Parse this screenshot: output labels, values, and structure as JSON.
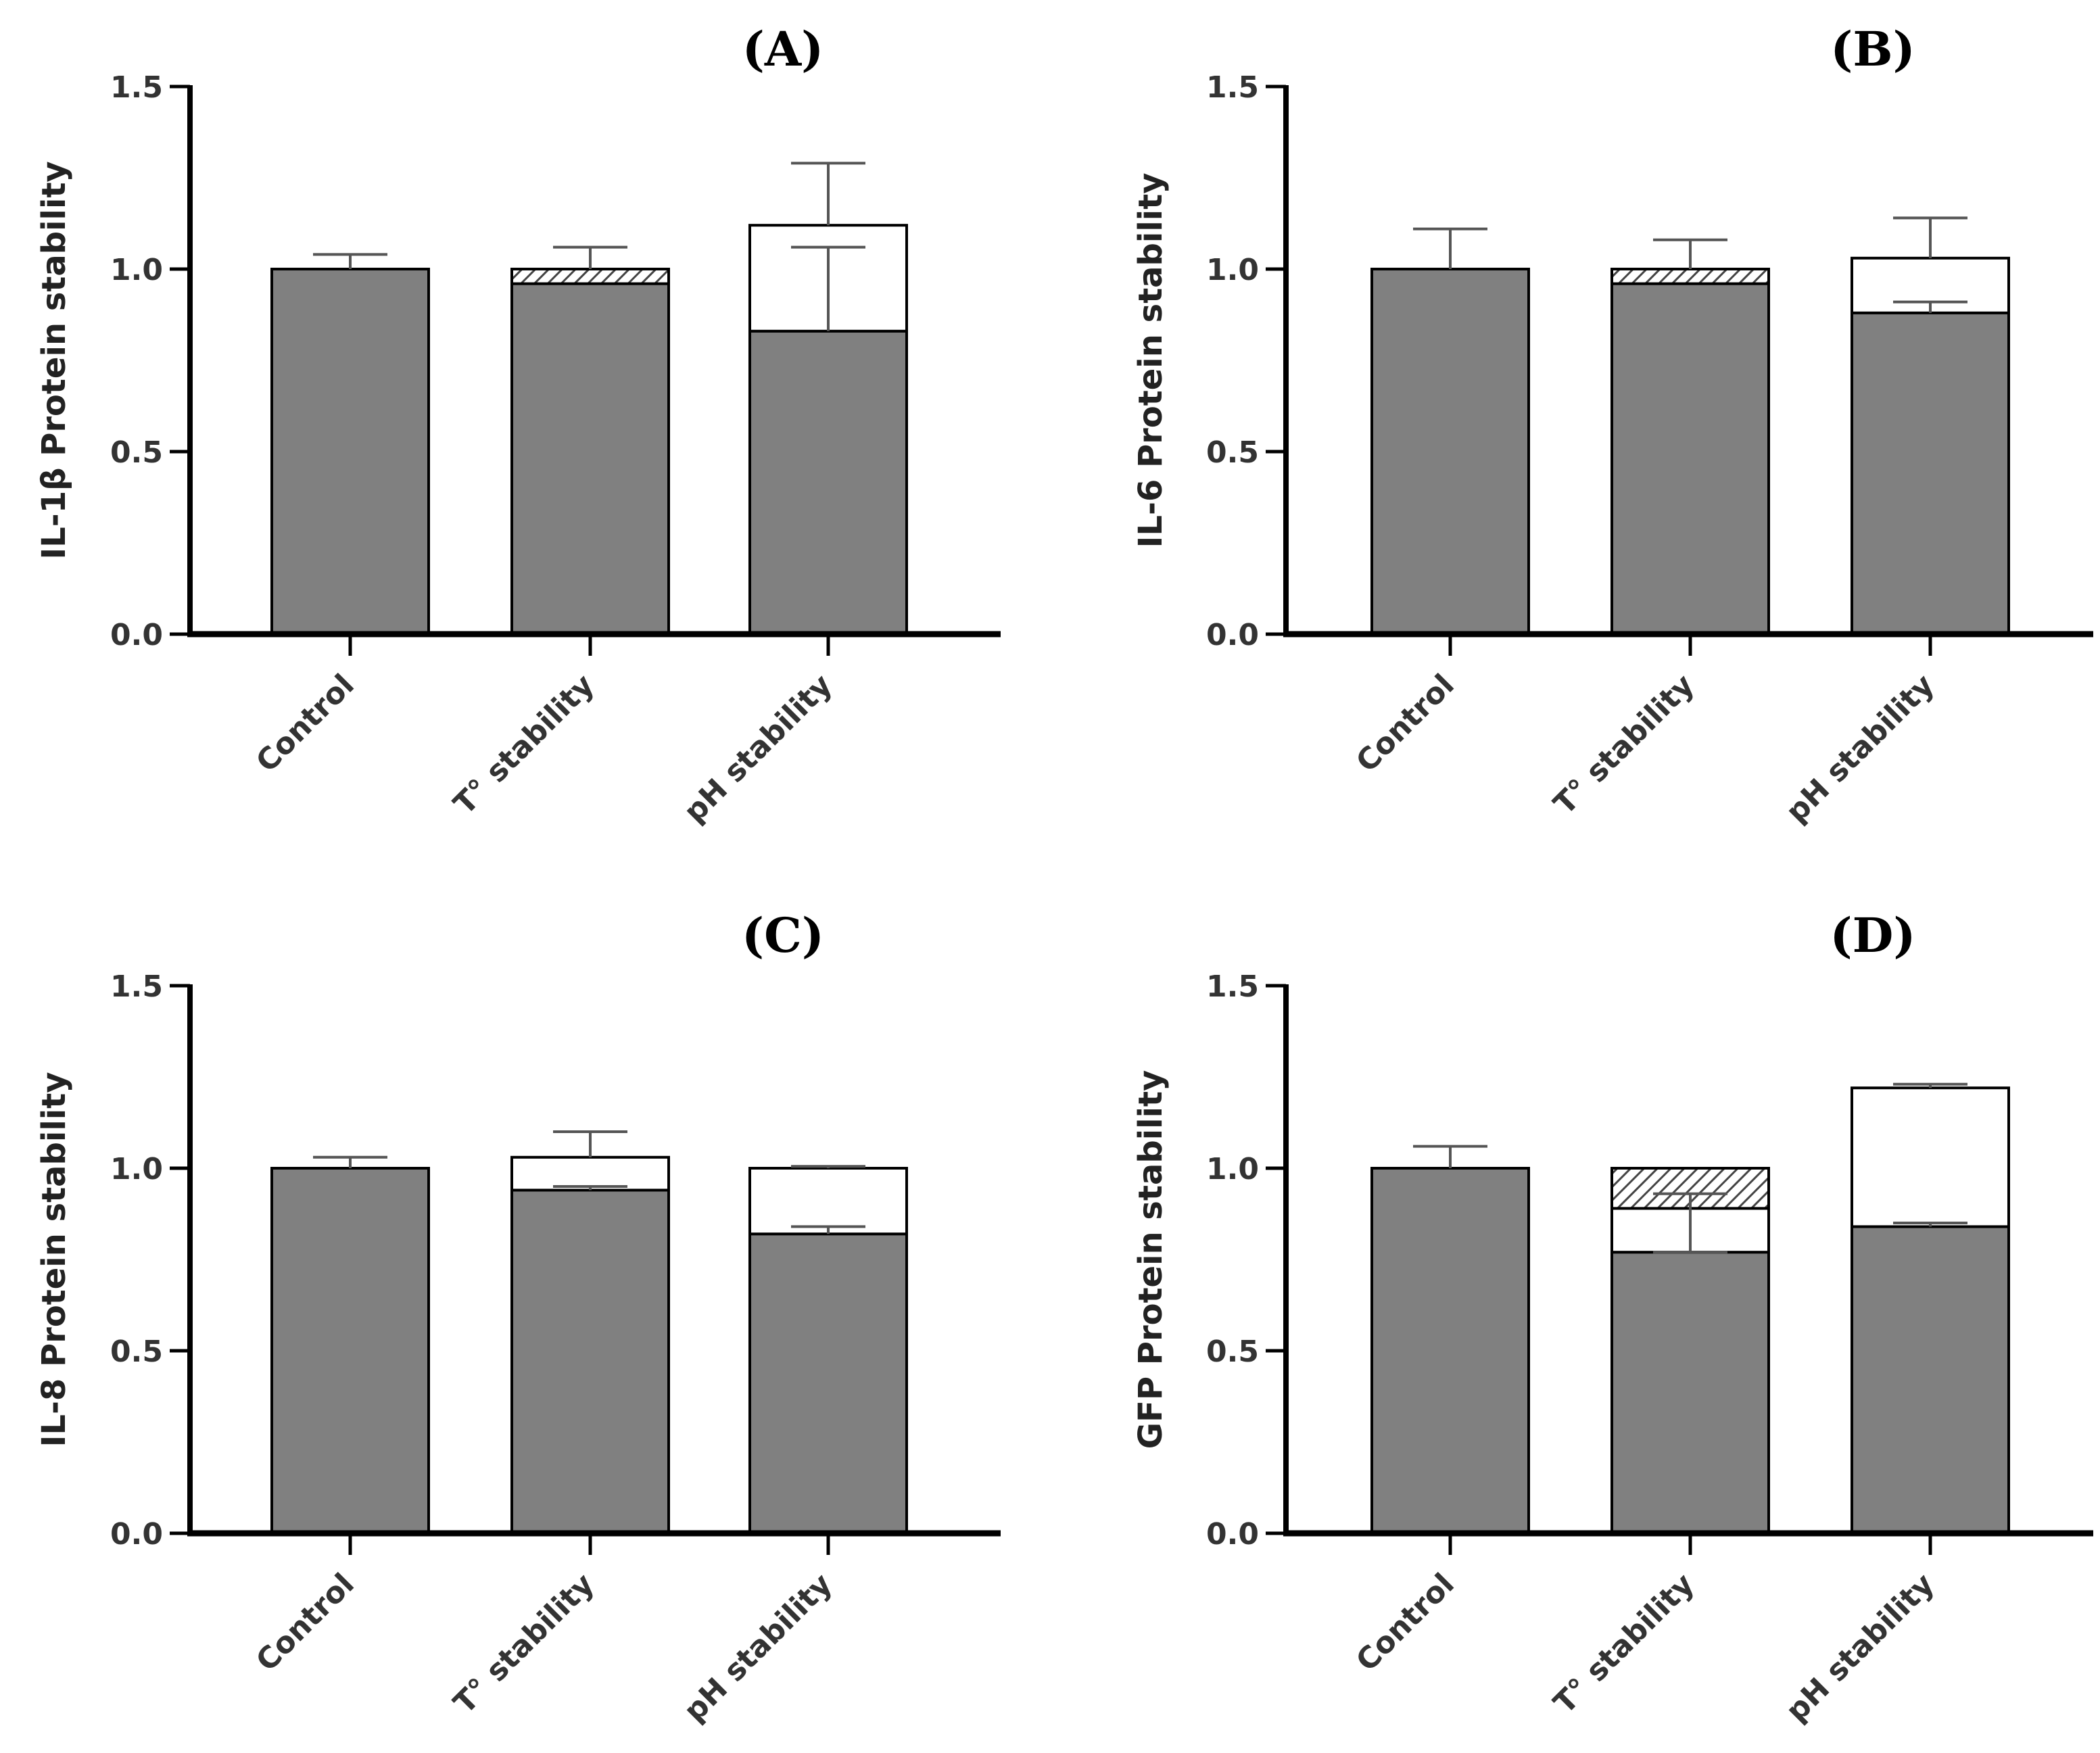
{
  "chart_data": [
    {
      "type": "bar",
      "panel": "(A)",
      "ylabel": "IL-1β Protein stability",
      "categories": [
        "Control",
        "T° stability",
        "pH stability"
      ],
      "yticks": [
        "0.0",
        "0.5",
        "1.0",
        "1.5"
      ],
      "ylim": [
        0,
        1.5
      ],
      "bars": [
        {
          "segments": [
            {
              "from": 0,
              "to": 1.0,
              "fill": "gray"
            }
          ],
          "errors": [
            {
              "at": 1.0,
              "to": 1.04
            }
          ]
        },
        {
          "segments": [
            {
              "from": 0,
              "to": 0.96,
              "fill": "gray"
            },
            {
              "from": 0.96,
              "to": 1.0,
              "fill": "hatched"
            }
          ],
          "errors": [
            {
              "at": 1.0,
              "to": 1.06
            }
          ]
        },
        {
          "segments": [
            {
              "from": 0,
              "to": 0.83,
              "fill": "gray"
            },
            {
              "from": 0.83,
              "to": 1.12,
              "fill": "white"
            }
          ],
          "errors": [
            {
              "at": 0.83,
              "to": 1.06
            },
            {
              "at": 1.12,
              "to": 1.29
            }
          ]
        }
      ]
    },
    {
      "type": "bar",
      "panel": "(B)",
      "ylabel": "IL-6 Protein stability",
      "categories": [
        "Control",
        "T° stability",
        "pH stability"
      ],
      "yticks": [
        "0.0",
        "0.5",
        "1.0",
        "1.5"
      ],
      "ylim": [
        0,
        1.5
      ],
      "bars": [
        {
          "segments": [
            {
              "from": 0,
              "to": 1.0,
              "fill": "gray"
            }
          ],
          "errors": [
            {
              "at": 1.0,
              "to": 1.11
            }
          ]
        },
        {
          "segments": [
            {
              "from": 0,
              "to": 0.96,
              "fill": "gray"
            },
            {
              "from": 0.96,
              "to": 1.0,
              "fill": "hatched"
            }
          ],
          "errors": [
            {
              "at": 1.0,
              "to": 1.08
            }
          ]
        },
        {
          "segments": [
            {
              "from": 0,
              "to": 0.88,
              "fill": "gray"
            },
            {
              "from": 0.88,
              "to": 1.03,
              "fill": "white"
            }
          ],
          "errors": [
            {
              "at": 0.88,
              "to": 0.91
            },
            {
              "at": 1.03,
              "to": 1.14
            }
          ]
        }
      ]
    },
    {
      "type": "bar",
      "panel": "(C)",
      "ylabel": "IL-8 Protein stability",
      "categories": [
        "Control",
        "T° stability",
        "pH stability"
      ],
      "yticks": [
        "0.0",
        "0.5",
        "1.0",
        "1.5"
      ],
      "ylim": [
        0,
        1.5
      ],
      "bars": [
        {
          "segments": [
            {
              "from": 0,
              "to": 1.0,
              "fill": "gray"
            }
          ],
          "errors": [
            {
              "at": 1.0,
              "to": 1.03
            }
          ]
        },
        {
          "segments": [
            {
              "from": 0,
              "to": 0.94,
              "fill": "gray"
            },
            {
              "from": 0.94,
              "to": 1.03,
              "fill": "white"
            }
          ],
          "errors": [
            {
              "at": 0.94,
              "to": 0.95
            },
            {
              "at": 1.03,
              "to": 1.1
            }
          ]
        },
        {
          "segments": [
            {
              "from": 0,
              "to": 0.82,
              "fill": "gray"
            },
            {
              "from": 0.82,
              "to": 1.0,
              "fill": "white"
            }
          ],
          "errors": [
            {
              "at": 0.82,
              "to": 0.84
            },
            {
              "at": 1.0,
              "to": 1.005
            }
          ]
        }
      ]
    },
    {
      "type": "bar",
      "panel": "(D)",
      "ylabel": "GFP Protein stability",
      "categories": [
        "Control",
        "T° stability",
        "pH stability"
      ],
      "yticks": [
        "0.0",
        "0.5",
        "1.0",
        "1.5"
      ],
      "ylim": [
        0,
        1.5
      ],
      "bars": [
        {
          "segments": [
            {
              "from": 0,
              "to": 1.0,
              "fill": "gray"
            }
          ],
          "errors": [
            {
              "at": 1.0,
              "to": 1.06
            }
          ]
        },
        {
          "segments": [
            {
              "from": 0,
              "to": 0.77,
              "fill": "gray"
            },
            {
              "from": 0.77,
              "to": 0.89,
              "fill": "white"
            },
            {
              "from": 0.89,
              "to": 1.0,
              "fill": "hatched"
            }
          ],
          "errors": [
            {
              "at": 0.89,
              "to": 0.93
            },
            {
              "at": 0.89,
              "to": 0.77
            }
          ]
        },
        {
          "segments": [
            {
              "from": 0,
              "to": 0.84,
              "fill": "gray"
            },
            {
              "from": 0.84,
              "to": 1.22,
              "fill": "white"
            }
          ],
          "errors": [
            {
              "at": 0.84,
              "to": 0.85
            },
            {
              "at": 1.22,
              "to": 1.23
            }
          ]
        }
      ]
    }
  ],
  "colors": {
    "bar_gray": "#808080",
    "axis": "#000000",
    "error": "#555555",
    "hatch": "#444444"
  }
}
